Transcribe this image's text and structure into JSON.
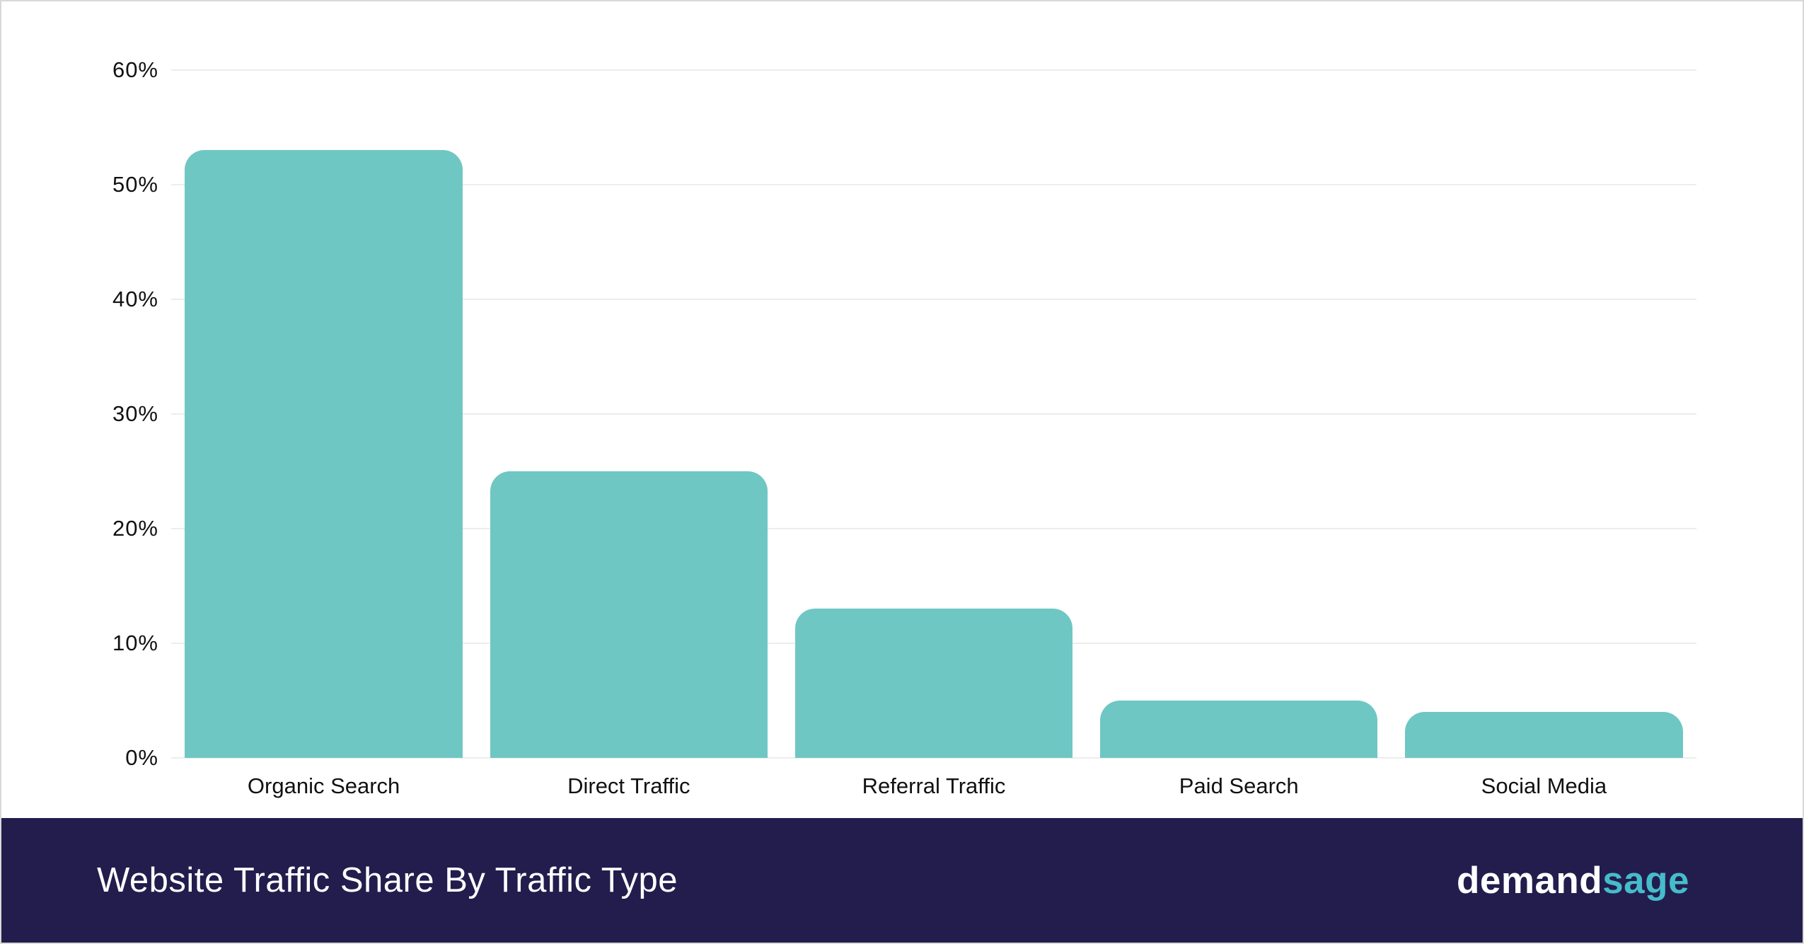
{
  "chart_data": {
    "type": "bar",
    "categories": [
      "Organic Search",
      "Direct Traffic",
      "Referral Traffic",
      "Paid Search",
      "Social Media"
    ],
    "values": [
      53,
      25,
      13,
      5,
      4
    ],
    "title": "Website Traffic Share By Traffic Type",
    "xlabel": "",
    "ylabel": "",
    "ylim": [
      0,
      60
    ],
    "ytick_step": 10,
    "ytick_labels": [
      "0%",
      "10%",
      "20%",
      "30%",
      "40%",
      "50%",
      "60%"
    ],
    "grid": true,
    "legend": "none",
    "bar_color": "#6fc7c3"
  },
  "footer": {
    "title": "Website Traffic Share By Traffic Type",
    "bg_color": "#221d4d",
    "logo": {
      "part1": "demand",
      "part2": "sage",
      "accent_color": "#46bccb"
    }
  }
}
